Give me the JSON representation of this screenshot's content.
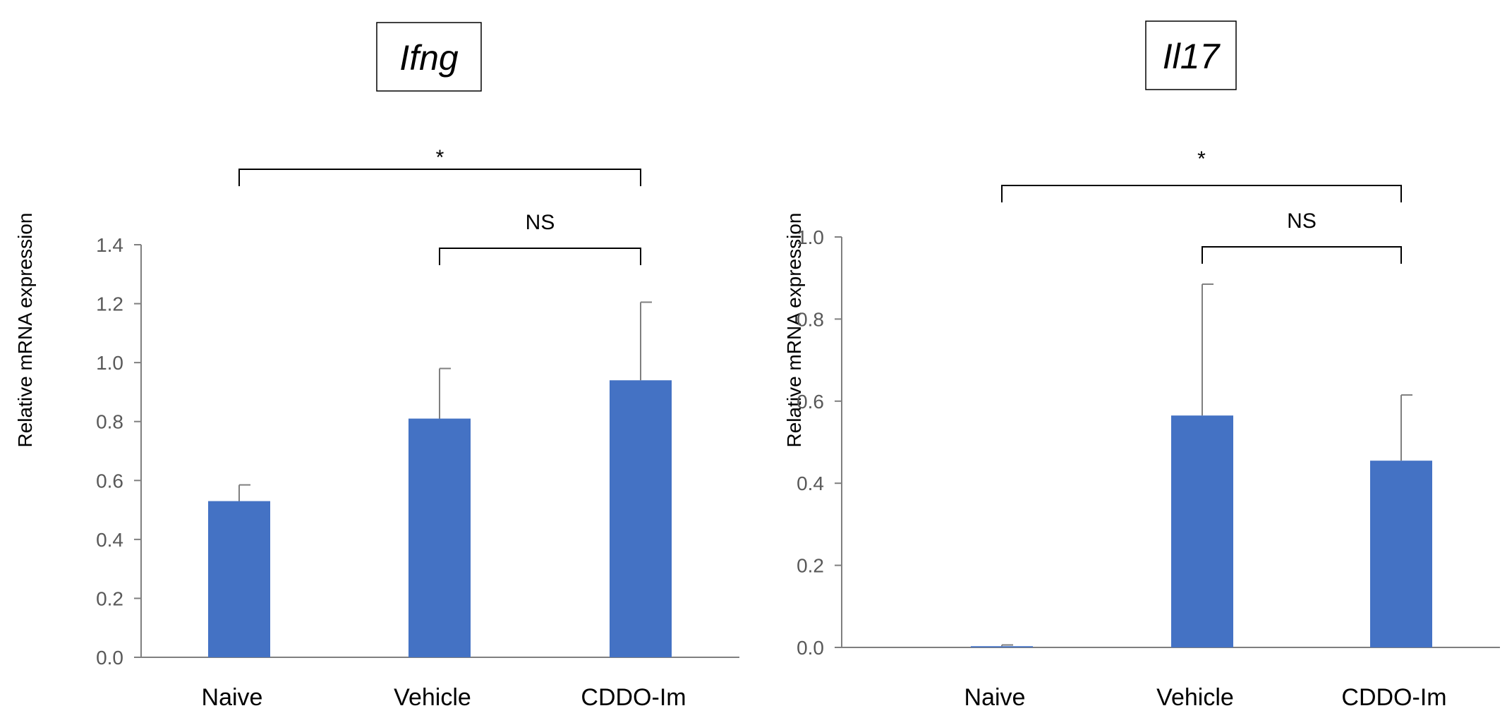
{
  "chart_data": [
    {
      "type": "bar",
      "title": "Ifng",
      "ylabel": "Relative mRNA expression",
      "xlabel": "",
      "categories": [
        "Naive",
        "Vehicle",
        "CDDO-Im"
      ],
      "values": [
        0.53,
        0.81,
        0.94
      ],
      "errors": [
        0.055,
        0.17,
        0.265
      ],
      "ylim": [
        0,
        1.4
      ],
      "yticks": [
        "0.0",
        "0.2",
        "0.4",
        "0.6",
        "0.8",
        "1.0",
        "1.2",
        "1.4"
      ],
      "bar_color": "#4472C4",
      "grid": false,
      "legend": "none",
      "significance": [
        {
          "from": "Naive",
          "to": "CDDO-Im",
          "label": "*"
        },
        {
          "from": "Vehicle",
          "to": "CDDO-Im",
          "label": "NS"
        }
      ]
    },
    {
      "type": "bar",
      "title": "Il17",
      "ylabel": "Relative mRNA expression",
      "xlabel": "",
      "categories": [
        "Naive",
        "Vehicle",
        "CDDO-Im"
      ],
      "values": [
        0.003,
        0.565,
        0.455
      ],
      "errors": [
        0.003,
        0.32,
        0.16
      ],
      "ylim": [
        0,
        1.0
      ],
      "yticks": [
        "0.0",
        "0.2",
        "0.4",
        "0.6",
        "0.8",
        "1.0"
      ],
      "bar_color": "#4472C4",
      "grid": false,
      "legend": "none",
      "significance": [
        {
          "from": "Naive",
          "to": "CDDO-Im",
          "label": "*"
        },
        {
          "from": "Vehicle",
          "to": "CDDO-Im",
          "label": "NS"
        }
      ]
    }
  ]
}
